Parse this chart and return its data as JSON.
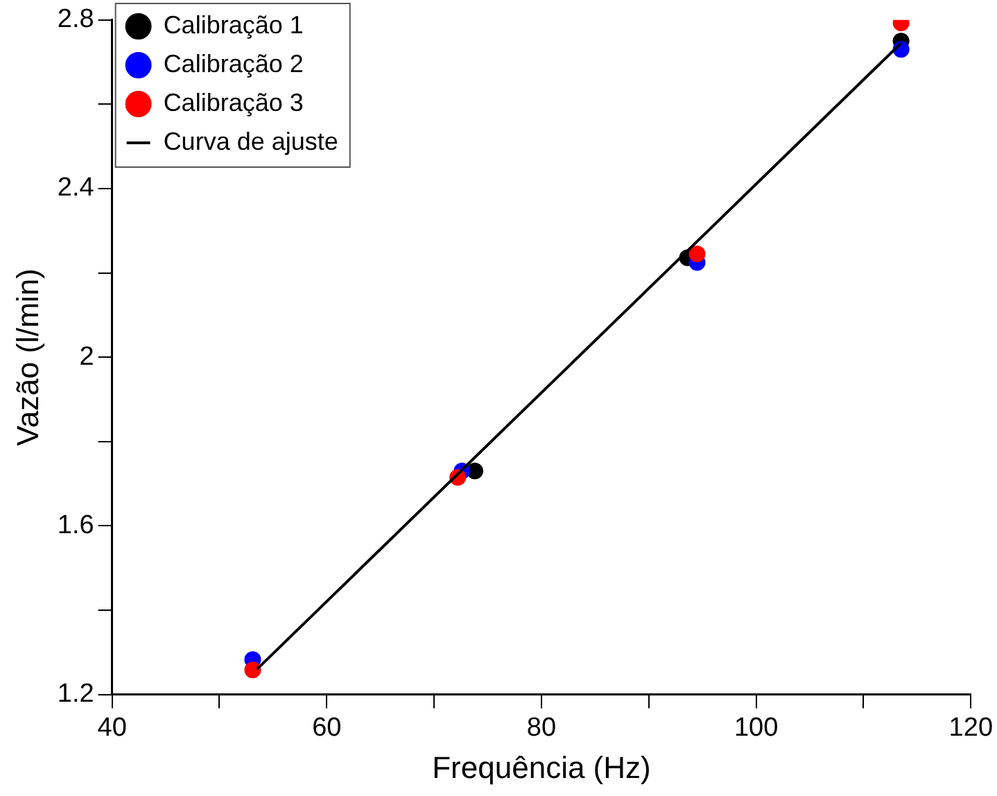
{
  "chart_data": {
    "type": "scatter",
    "xlabel": "Frequência (Hz)",
    "ylabel": "Vazão (l/min)",
    "xlim": [
      40,
      120
    ],
    "xticks": [
      40,
      {
        "value": 50,
        "label": null
      },
      60,
      {
        "value": 70,
        "label": null
      },
      80,
      {
        "value": 90,
        "label": null
      },
      100,
      {
        "value": 110,
        "label": null
      },
      120
    ],
    "ylim": [
      1.2,
      2.8
    ],
    "yticks": [
      1.2,
      {
        "value": 1.4,
        "label": null
      },
      1.6,
      {
        "value": 1.8,
        "label": null
      },
      2,
      {
        "value": 2.2,
        "label": null
      },
      2.4,
      {
        "value": 2.6,
        "label": null
      },
      2.8
    ],
    "grid": false,
    "legend": "top left",
    "marker": "circle",
    "series": [
      {
        "name": "Calibração 1",
        "color": "#000000",
        "x": [
          73.8,
          93.6,
          113.5
        ],
        "values": [
          1.73,
          2.236,
          2.75
        ]
      },
      {
        "name": "Calibração 2",
        "color": "#0000ff",
        "x": [
          53.1,
          72.6,
          94.5,
          113.5
        ],
        "values": [
          1.283,
          1.73,
          2.225,
          2.73
        ]
      },
      {
        "name": "Calibração 3",
        "color": "#ff0000",
        "x": [
          53.1,
          72.2,
          94.5,
          113.5
        ],
        "values": [
          1.258,
          1.715,
          2.245,
          2.793
        ]
      },
      {
        "name": "Curva de ajuste",
        "type": "line",
        "color": "#000000",
        "marker": "none",
        "x": [
          53.5,
          113.5
        ],
        "values": [
          1.26,
          2.745
        ]
      }
    ]
  }
}
